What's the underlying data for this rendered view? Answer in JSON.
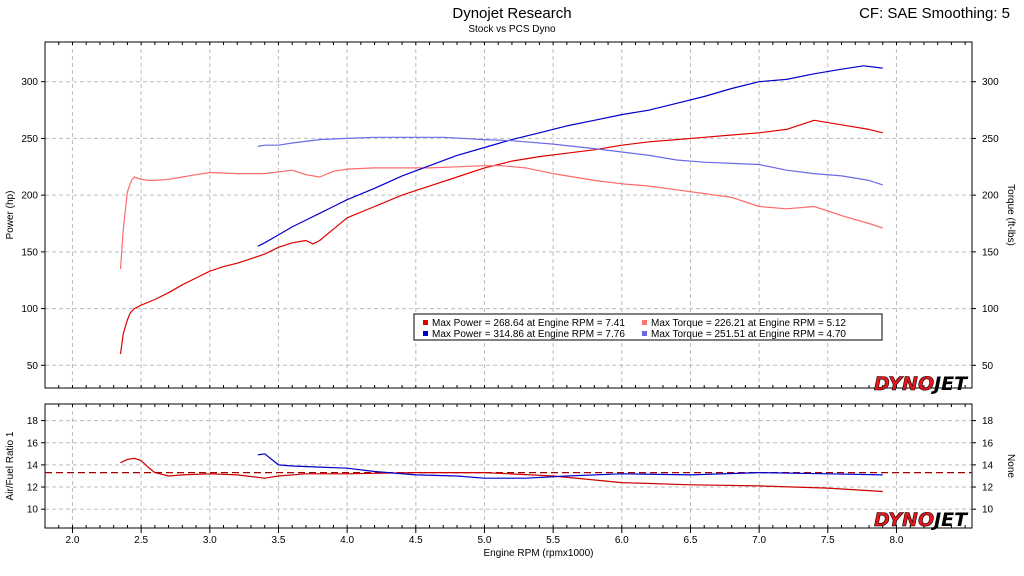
{
  "header": {
    "title": "Dynojet Research",
    "subtitle": "Stock vs PCS Dyno",
    "cf_info": "CF: SAE Smoothing: 5"
  },
  "branding": {
    "logo_text": "DYNOJET",
    "logo_part1": "DYNO",
    "logo_part2": "JET",
    "logo_color": "#e8161b"
  },
  "chart_data": [
    {
      "type": "line",
      "ylabel": "Power (hp)",
      "y2label": "Torque (ft-lbs)",
      "xlim": [
        1.8,
        8.55
      ],
      "ylim": [
        30,
        335
      ],
      "yticks": [
        50,
        100,
        150,
        200,
        250,
        300
      ],
      "y2ticks": [
        50,
        100,
        150,
        200,
        250,
        300
      ],
      "grid": true,
      "legend": {
        "placement": "center-right",
        "entries": [
          {
            "text": "Max Power = 268.64 at Engine RPM = 7.41",
            "color": "#e00000"
          },
          {
            "text": "Max Torque = 226.21 at Engine RPM = 5.12",
            "color": "#ff7070"
          },
          {
            "text": "Max Power = 314.86 at Engine RPM = 7.76",
            "color": "#0000cc"
          },
          {
            "text": "Max Torque = 251.51 at Engine RPM = 4.70",
            "color": "#6a6ae6"
          }
        ]
      },
      "series": [
        {
          "color": "#e00000",
          "x": [
            2.35,
            2.37,
            2.4,
            2.42,
            2.45,
            2.5,
            2.6,
            2.7,
            2.8,
            2.9,
            3.0,
            3.1,
            3.2,
            3.3,
            3.4,
            3.5,
            3.6,
            3.7,
            3.75,
            3.8,
            3.9,
            4.0,
            4.2,
            4.4,
            4.6,
            4.8,
            5.0,
            5.2,
            5.4,
            5.6,
            5.8,
            6.0,
            6.2,
            6.4,
            6.6,
            6.8,
            7.0,
            7.2,
            7.4,
            7.6,
            7.8,
            7.9
          ],
          "y": [
            60,
            78,
            90,
            96,
            100,
            103,
            108,
            114,
            121,
            127,
            133,
            137,
            140,
            144,
            148,
            154,
            158,
            160,
            157,
            160,
            170,
            180,
            190,
            200,
            208,
            216,
            224,
            230,
            234,
            237,
            240,
            244,
            247,
            249,
            251,
            253,
            255,
            258,
            266,
            262,
            258,
            255
          ]
        },
        {
          "color": "#ff6a6a",
          "x": [
            2.35,
            2.37,
            2.4,
            2.43,
            2.45,
            2.5,
            2.55,
            2.6,
            2.7,
            2.8,
            2.9,
            3.0,
            3.2,
            3.4,
            3.6,
            3.7,
            3.8,
            3.9,
            4.0,
            4.2,
            4.4,
            4.6,
            4.8,
            5.0,
            5.12,
            5.3,
            5.5,
            5.8,
            6.0,
            6.2,
            6.5,
            6.8,
            7.0,
            7.2,
            7.4,
            7.6,
            7.8,
            7.9
          ],
          "y": [
            135,
            170,
            203,
            213,
            216,
            214,
            213,
            213,
            214,
            216,
            218,
            220,
            219,
            219,
            222,
            218,
            216,
            221,
            223,
            224,
            224,
            224,
            225,
            226,
            226,
            224,
            219,
            213,
            210,
            208,
            203,
            198,
            190,
            188,
            190,
            182,
            175,
            171
          ]
        },
        {
          "color": "#0000cc",
          "x": [
            3.35,
            3.4,
            3.5,
            3.6,
            3.7,
            3.8,
            3.9,
            4.0,
            4.2,
            4.4,
            4.6,
            4.8,
            5.0,
            5.2,
            5.4,
            5.6,
            5.8,
            6.0,
            6.2,
            6.4,
            6.6,
            6.8,
            7.0,
            7.2,
            7.4,
            7.6,
            7.76,
            7.9
          ],
          "y": [
            155,
            158,
            165,
            172,
            178,
            184,
            190,
            196,
            206,
            217,
            226,
            235,
            242,
            249,
            255,
            261,
            266,
            271,
            275,
            281,
            287,
            294,
            300,
            302,
            307,
            311,
            314,
            312
          ]
        },
        {
          "color": "#6a6ae6",
          "x": [
            3.35,
            3.4,
            3.5,
            3.6,
            3.8,
            4.0,
            4.2,
            4.4,
            4.7,
            5.0,
            5.2,
            5.5,
            5.8,
            6.0,
            6.2,
            6.4,
            6.6,
            6.8,
            7.0,
            7.2,
            7.4,
            7.6,
            7.8,
            7.9
          ],
          "y": [
            243,
            244,
            244,
            246,
            249,
            250,
            251,
            251,
            251,
            249,
            248,
            245,
            241,
            238,
            235,
            231,
            229,
            228,
            227,
            222,
            219,
            217,
            213,
            209
          ]
        }
      ]
    },
    {
      "type": "line",
      "ylabel": "Air/Fuel Ratio 1",
      "y2label": "None",
      "xlabel": "Engine RPM (rpmx1000)",
      "xlim": [
        1.8,
        8.55
      ],
      "ylim": [
        8.3,
        19.5
      ],
      "xticks": [
        2.0,
        2.5,
        3.0,
        3.5,
        4.0,
        4.5,
        5.0,
        5.5,
        6.0,
        6.5,
        7.0,
        7.5,
        8.0
      ],
      "xtick_labels": [
        "2.0",
        "2.5",
        "3.0",
        "3.5",
        "4.0",
        "4.5",
        "5.0",
        "5.5",
        "6.0",
        "6.5",
        "7.0",
        "7.5",
        "8.0"
      ],
      "yticks": [
        10,
        12,
        14,
        16,
        18
      ],
      "y2ticks": [
        10,
        12,
        14,
        16,
        18
      ],
      "reference_line": {
        "y": 13.3,
        "color": "#a00000",
        "style": "dashed"
      },
      "grid": true,
      "series": [
        {
          "color": "#cc0000",
          "x": [
            2.35,
            2.4,
            2.45,
            2.5,
            2.55,
            2.6,
            2.7,
            2.8,
            3.0,
            3.2,
            3.4,
            3.5,
            3.7,
            4.0,
            4.5,
            5.0,
            5.5,
            6.0,
            6.5,
            7.0,
            7.5,
            7.9
          ],
          "y": [
            14.2,
            14.5,
            14.6,
            14.4,
            13.8,
            13.3,
            13.0,
            13.1,
            13.2,
            13.1,
            12.8,
            13.0,
            13.2,
            13.2,
            13.3,
            13.3,
            13.0,
            12.4,
            12.2,
            12.1,
            11.9,
            11.6
          ]
        },
        {
          "color": "#0000cc",
          "x": [
            3.35,
            3.4,
            3.45,
            3.5,
            3.6,
            3.8,
            4.0,
            4.2,
            4.5,
            4.8,
            5.0,
            5.3,
            5.6,
            6.0,
            6.5,
            7.0,
            7.5,
            7.9
          ],
          "y": [
            14.9,
            15.0,
            14.5,
            14.0,
            13.9,
            13.8,
            13.7,
            13.4,
            13.1,
            13.0,
            12.8,
            12.8,
            13.0,
            13.2,
            13.1,
            13.3,
            13.2,
            13.1
          ]
        }
      ]
    }
  ]
}
